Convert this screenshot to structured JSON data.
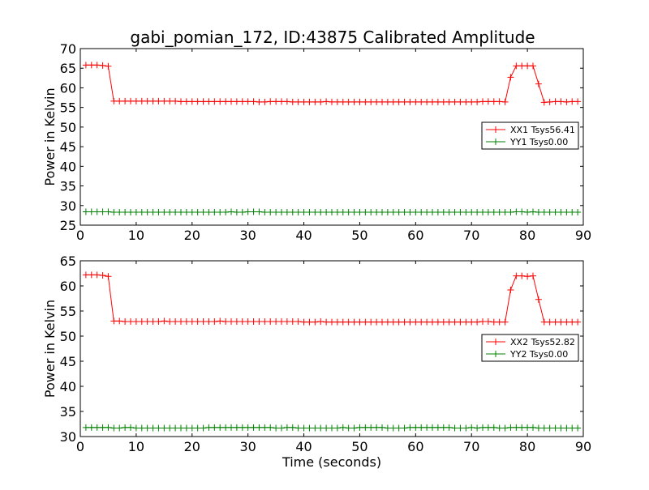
{
  "title": "gabi_pomian_172, ID:43875 Calibrated Amplitude",
  "chart_data": [
    {
      "type": "line",
      "title": "gabi_pomian_172, ID:43875 Calibrated Amplitude",
      "xlabel": "",
      "ylabel": "Power in Kelvin",
      "xlim": [
        0,
        90
      ],
      "ylim": [
        25,
        70
      ],
      "xticks": [
        "0",
        "10",
        "20",
        "30",
        "40",
        "50",
        "60",
        "70",
        "80",
        "90"
      ],
      "yticks": [
        "25",
        "30",
        "35",
        "40",
        "45",
        "50",
        "55",
        "60",
        "65",
        "70"
      ],
      "grid": false,
      "legend": "center-right",
      "x": [
        1,
        2,
        3,
        4,
        5,
        6,
        7,
        8,
        9,
        10,
        11,
        12,
        13,
        14,
        15,
        16,
        17,
        18,
        19,
        20,
        21,
        22,
        23,
        24,
        25,
        26,
        27,
        28,
        29,
        30,
        31,
        32,
        33,
        34,
        35,
        36,
        37,
        38,
        39,
        40,
        41,
        42,
        43,
        44,
        45,
        46,
        47,
        48,
        49,
        50,
        51,
        52,
        53,
        54,
        55,
        56,
        57,
        58,
        59,
        60,
        61,
        62,
        63,
        64,
        65,
        66,
        67,
        68,
        69,
        70,
        71,
        72,
        73,
        74,
        75,
        76,
        77,
        78,
        79,
        80,
        81,
        82,
        83,
        84,
        85,
        86,
        87,
        88,
        89
      ],
      "series": [
        {
          "name": "XX1 Tsys56.41",
          "color": "#ff0000",
          "values": [
            65.8,
            65.8,
            65.8,
            65.7,
            65.5,
            56.6,
            56.6,
            56.6,
            56.6,
            56.6,
            56.6,
            56.6,
            56.6,
            56.6,
            56.6,
            56.6,
            56.6,
            56.5,
            56.5,
            56.5,
            56.5,
            56.5,
            56.5,
            56.5,
            56.5,
            56.5,
            56.5,
            56.5,
            56.5,
            56.5,
            56.5,
            56.4,
            56.4,
            56.5,
            56.5,
            56.5,
            56.5,
            56.4,
            56.4,
            56.4,
            56.4,
            56.4,
            56.4,
            56.5,
            56.4,
            56.4,
            56.4,
            56.4,
            56.4,
            56.4,
            56.4,
            56.4,
            56.4,
            56.4,
            56.4,
            56.4,
            56.4,
            56.4,
            56.4,
            56.4,
            56.4,
            56.4,
            56.4,
            56.4,
            56.4,
            56.4,
            56.4,
            56.4,
            56.4,
            56.4,
            56.4,
            56.5,
            56.5,
            56.5,
            56.5,
            56.4,
            62.7,
            65.6,
            65.6,
            65.6,
            65.6,
            61.0,
            56.3,
            56.4,
            56.5,
            56.5,
            56.4,
            56.5,
            56.5
          ]
        },
        {
          "name": "YY1 Tsys0.00",
          "color": "#008000",
          "values": [
            28.4,
            28.4,
            28.4,
            28.4,
            28.4,
            28.3,
            28.3,
            28.3,
            28.3,
            28.3,
            28.3,
            28.3,
            28.3,
            28.3,
            28.3,
            28.3,
            28.3,
            28.3,
            28.3,
            28.3,
            28.3,
            28.3,
            28.3,
            28.3,
            28.3,
            28.3,
            28.4,
            28.3,
            28.3,
            28.4,
            28.4,
            28.4,
            28.3,
            28.3,
            28.3,
            28.3,
            28.3,
            28.3,
            28.3,
            28.3,
            28.3,
            28.3,
            28.3,
            28.3,
            28.3,
            28.3,
            28.3,
            28.3,
            28.3,
            28.3,
            28.3,
            28.3,
            28.3,
            28.3,
            28.3,
            28.3,
            28.3,
            28.3,
            28.3,
            28.3,
            28.3,
            28.3,
            28.3,
            28.3,
            28.3,
            28.3,
            28.3,
            28.3,
            28.3,
            28.3,
            28.3,
            28.3,
            28.3,
            28.3,
            28.3,
            28.3,
            28.3,
            28.4,
            28.4,
            28.3,
            28.4,
            28.3,
            28.3,
            28.3,
            28.3,
            28.3,
            28.3,
            28.3,
            28.3
          ]
        }
      ]
    },
    {
      "type": "line",
      "title": "",
      "xlabel": "Time (seconds)",
      "ylabel": "Power in Kelvin",
      "xlim": [
        0,
        90
      ],
      "ylim": [
        30,
        65
      ],
      "xticks": [
        "0",
        "10",
        "20",
        "30",
        "40",
        "50",
        "60",
        "70",
        "80",
        "90"
      ],
      "yticks": [
        "30",
        "35",
        "40",
        "45",
        "50",
        "55",
        "60",
        "65"
      ],
      "grid": false,
      "legend": "center-right",
      "x": [
        1,
        2,
        3,
        4,
        5,
        6,
        7,
        8,
        9,
        10,
        11,
        12,
        13,
        14,
        15,
        16,
        17,
        18,
        19,
        20,
        21,
        22,
        23,
        24,
        25,
        26,
        27,
        28,
        29,
        30,
        31,
        32,
        33,
        34,
        35,
        36,
        37,
        38,
        39,
        40,
        41,
        42,
        43,
        44,
        45,
        46,
        47,
        48,
        49,
        50,
        51,
        52,
        53,
        54,
        55,
        56,
        57,
        58,
        59,
        60,
        61,
        62,
        63,
        64,
        65,
        66,
        67,
        68,
        69,
        70,
        71,
        72,
        73,
        74,
        75,
        76,
        77,
        78,
        79,
        80,
        81,
        82,
        83,
        84,
        85,
        86,
        87,
        88,
        89
      ],
      "series": [
        {
          "name": "XX2 Tsys52.82",
          "color": "#ff0000",
          "values": [
            62.2,
            62.2,
            62.2,
            62.1,
            61.9,
            53.0,
            53.0,
            52.9,
            52.9,
            52.9,
            52.9,
            52.9,
            52.9,
            52.9,
            53.0,
            52.9,
            52.9,
            52.9,
            52.9,
            52.9,
            52.9,
            52.9,
            52.9,
            52.9,
            53.0,
            52.9,
            52.9,
            52.9,
            52.9,
            52.9,
            52.9,
            52.9,
            52.9,
            52.9,
            52.9,
            52.9,
            52.9,
            52.9,
            52.9,
            52.8,
            52.8,
            52.8,
            52.9,
            52.8,
            52.8,
            52.8,
            52.8,
            52.8,
            52.8,
            52.8,
            52.8,
            52.8,
            52.8,
            52.8,
            52.8,
            52.8,
            52.8,
            52.8,
            52.8,
            52.8,
            52.8,
            52.8,
            52.8,
            52.8,
            52.8,
            52.8,
            52.8,
            52.8,
            52.8,
            52.8,
            52.8,
            52.9,
            52.9,
            52.8,
            52.8,
            52.8,
            59.2,
            62.0,
            62.0,
            61.9,
            62.0,
            57.3,
            52.8,
            52.8,
            52.8,
            52.8,
            52.8,
            52.8,
            52.8
          ]
        },
        {
          "name": "YY2 Tsys0.00",
          "color": "#008000",
          "values": [
            31.8,
            31.8,
            31.8,
            31.8,
            31.8,
            31.7,
            31.7,
            31.8,
            31.8,
            31.7,
            31.7,
            31.7,
            31.7,
            31.7,
            31.7,
            31.7,
            31.7,
            31.7,
            31.7,
            31.7,
            31.7,
            31.7,
            31.8,
            31.8,
            31.8,
            31.8,
            31.8,
            31.8,
            31.8,
            31.8,
            31.8,
            31.8,
            31.8,
            31.8,
            31.7,
            31.7,
            31.8,
            31.8,
            31.7,
            31.7,
            31.7,
            31.7,
            31.7,
            31.7,
            31.7,
            31.7,
            31.8,
            31.7,
            31.7,
            31.8,
            31.8,
            31.8,
            31.8,
            31.8,
            31.7,
            31.7,
            31.7,
            31.7,
            31.8,
            31.8,
            31.8,
            31.8,
            31.8,
            31.8,
            31.8,
            31.8,
            31.7,
            31.7,
            31.7,
            31.8,
            31.7,
            31.8,
            31.8,
            31.8,
            31.7,
            31.7,
            31.8,
            31.8,
            31.8,
            31.8,
            31.8,
            31.7,
            31.7,
            31.7,
            31.7,
            31.7,
            31.7,
            31.7,
            31.7
          ]
        }
      ]
    }
  ]
}
